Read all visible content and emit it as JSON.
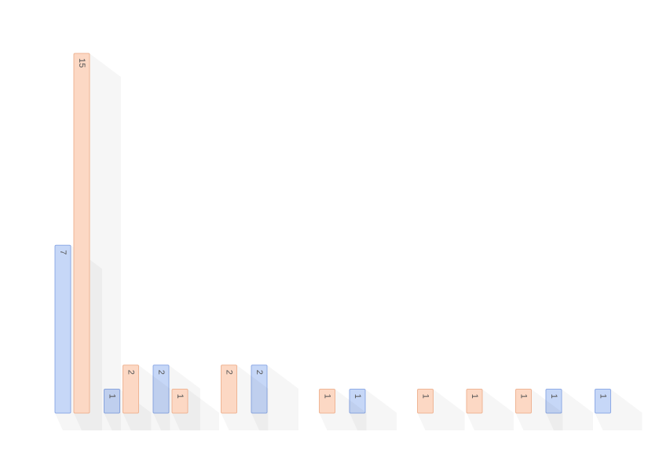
{
  "chart_data": {
    "type": "bar",
    "categories": [
      null,
      null,
      null,
      null,
      null,
      null,
      null,
      null,
      null,
      null,
      null,
      null
    ],
    "series": [
      {
        "color": "#c6d7f7",
        "values": [
          7,
          1,
          2,
          null,
          2,
          null,
          1,
          null,
          null,
          null,
          1,
          1
        ]
      },
      {
        "color": "#fcd8c4",
        "values": [
          15,
          2,
          1,
          2,
          null,
          1,
          null,
          1,
          1,
          1,
          null,
          null
        ]
      }
    ],
    "ylim": [
      0,
      15
    ]
  }
}
